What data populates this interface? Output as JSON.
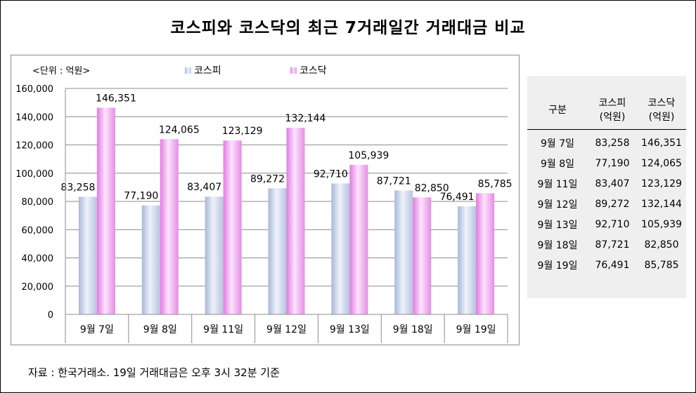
{
  "title": "코스피와 코스닥의 최근 7거래일간 거래대금 비교",
  "unit_label": "<단위 : 억원>",
  "source_note": "자료 : 한국거래소. 19일 거래대금은 오후 3시 32분 기준",
  "colors": {
    "kospi": "#c4d0e6",
    "kosdaq": "#ea9aea",
    "grid": "#8c8c8c",
    "table_bg": "#efefef"
  },
  "chart_data": {
    "type": "bar",
    "categories": [
      "9월 7일",
      "9월 8일",
      "9월 11일",
      "9월 12일",
      "9월 13일",
      "9월 18일",
      "9월 19일"
    ],
    "series": [
      {
        "name": "코스피",
        "values": [
          83258,
          77190,
          83407,
          89272,
          92710,
          87721,
          76491
        ],
        "labels": [
          "83,258",
          "77,190",
          "83,407",
          "89,272",
          "92,710",
          "87,721",
          "76,491"
        ]
      },
      {
        "name": "코스닥",
        "values": [
          146351,
          124065,
          123129,
          132144,
          105939,
          82850,
          85785
        ],
        "labels": [
          "146,351",
          "124,065",
          "123,129",
          "132,144",
          "105,939",
          "82,850",
          "85,785"
        ]
      }
    ],
    "ylim": [
      0,
      160000
    ],
    "yticks": [
      "0",
      "20,000",
      "40,000",
      "60,000",
      "80,000",
      "100,000",
      "120,000",
      "140,000",
      "160,000"
    ],
    "grid": true,
    "legend": "top"
  },
  "table": {
    "header": {
      "col1": "구분",
      "col2_line1": "코스피",
      "col2_line2": "(억원)",
      "col3_line1": "코스닥",
      "col3_line2": "(억원)"
    },
    "rows": [
      {
        "date": "9월 7일",
        "kospi": "83,258",
        "kosdaq": "146,351"
      },
      {
        "date": "9월 8일",
        "kospi": "77,190",
        "kosdaq": "124,065"
      },
      {
        "date": "9월 11일",
        "kospi": "83,407",
        "kosdaq": "123,129"
      },
      {
        "date": "9월 12일",
        "kospi": "89,272",
        "kosdaq": "132,144"
      },
      {
        "date": "9월 13일",
        "kospi": "92,710",
        "kosdaq": "105,939"
      },
      {
        "date": "9월 18일",
        "kospi": "87,721",
        "kosdaq": "82,850"
      },
      {
        "date": "9월 19일",
        "kospi": "76,491",
        "kosdaq": "85,785"
      }
    ]
  }
}
